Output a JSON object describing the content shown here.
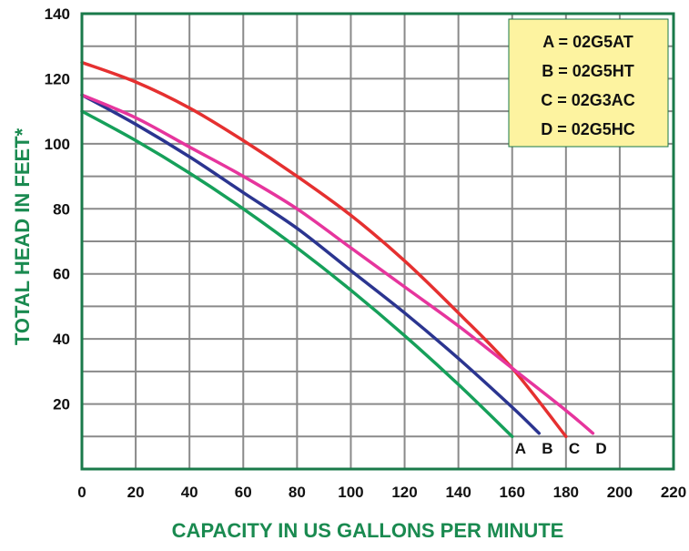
{
  "chart_data": {
    "type": "line",
    "xlabel": "CAPACITY IN US GALLONS PER MINUTE",
    "ylabel": "TOTAL HEAD IN FEET*",
    "xlim": [
      0,
      220
    ],
    "ylim": [
      0,
      140
    ],
    "x_ticks": [
      "0",
      "20",
      "40",
      "60",
      "80",
      "100",
      "120",
      "140",
      "160",
      "180",
      "200",
      "220"
    ],
    "y_ticks": [
      "20",
      "40",
      "60",
      "80",
      "100",
      "120",
      "140"
    ],
    "grid": true,
    "legend_placement": "top-right",
    "legend": [
      "A = 02G5AT",
      "B = 02G5HT",
      "C = 02G3AC",
      "D = 02G5HC"
    ],
    "colors": {
      "frame": "#1a7a4a",
      "grid": "#8a8a8a",
      "axis_title": "#1a8a50",
      "legend_bg": "#fdf3a0"
    },
    "series": [
      {
        "name": "A",
        "color": "#16a05a",
        "x": [
          0,
          20,
          40,
          60,
          80,
          100,
          120,
          140,
          160
        ],
        "y": [
          110,
          101,
          91,
          80,
          68,
          55,
          41,
          26,
          10
        ]
      },
      {
        "name": "B",
        "color": "#2b3590",
        "x": [
          0,
          20,
          40,
          60,
          80,
          100,
          120,
          140,
          160,
          170
        ],
        "y": [
          115,
          106,
          96,
          85,
          74,
          61,
          48,
          34,
          19,
          11
        ]
      },
      {
        "name": "C",
        "color": "#e53030",
        "x": [
          0,
          20,
          40,
          60,
          80,
          100,
          120,
          140,
          160,
          180
        ],
        "y": [
          125,
          119,
          111,
          101,
          90,
          78,
          64,
          48,
          31,
          10
        ]
      },
      {
        "name": "D",
        "color": "#e6359d",
        "x": [
          0,
          20,
          40,
          60,
          80,
          100,
          120,
          140,
          160,
          180,
          190
        ],
        "y": [
          115,
          108,
          99,
          90,
          80,
          68,
          56,
          44,
          31,
          18,
          11
        ]
      }
    ]
  }
}
